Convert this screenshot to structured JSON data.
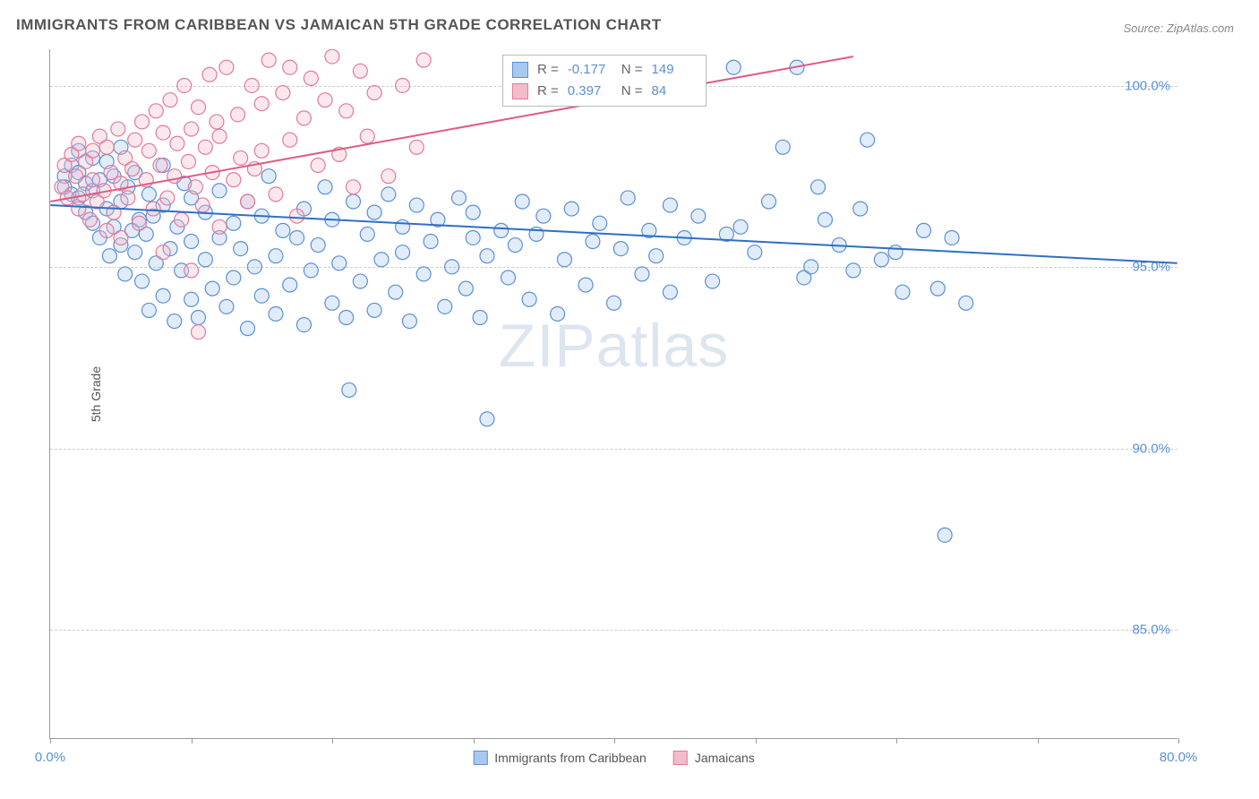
{
  "title": "IMMIGRANTS FROM CARIBBEAN VS JAMAICAN 5TH GRADE CORRELATION CHART",
  "source": "Source: ZipAtlas.com",
  "watermark": "ZIPatlas",
  "ylabel": "5th Grade",
  "chart": {
    "type": "scatter",
    "background_color": "#ffffff",
    "grid_color": "#cccccc",
    "axis_color": "#999999",
    "xlim": [
      0,
      80
    ],
    "ylim": [
      82,
      101
    ],
    "xtick_positions": [
      0,
      10,
      20,
      30,
      40,
      50,
      60,
      70,
      80
    ],
    "xtick_labels": {
      "0": "0.0%",
      "80": "80.0%"
    },
    "ytick_positions": [
      85,
      90,
      95,
      100
    ],
    "ytick_labels": [
      "85.0%",
      "90.0%",
      "95.0%",
      "100.0%"
    ],
    "marker_radius": 8,
    "marker_fill_opacity": 0.35,
    "marker_stroke_width": 1.2,
    "trend_line_width": 2,
    "series": [
      {
        "name": "Immigrants from Caribbean",
        "color_fill": "#a9c8ee",
        "color_stroke": "#5b8fd6",
        "trend_color": "#2f6fc2",
        "R": "-0.177",
        "N": "149",
        "trend": {
          "x0": 0,
          "y0": 96.7,
          "x1": 80,
          "y1": 95.1
        },
        "points": [
          [
            1,
            97.5
          ],
          [
            1,
            97.2
          ],
          [
            1.5,
            97.8
          ],
          [
            1.5,
            97.0
          ],
          [
            2,
            97.6
          ],
          [
            2,
            96.9
          ],
          [
            2,
            98.2
          ],
          [
            2.5,
            97.3
          ],
          [
            2.5,
            96.5
          ],
          [
            3,
            97.1
          ],
          [
            3,
            96.2
          ],
          [
            3,
            98.0
          ],
          [
            3.5,
            97.4
          ],
          [
            3.5,
            95.8
          ],
          [
            4,
            96.6
          ],
          [
            4,
            97.9
          ],
          [
            4.2,
            95.3
          ],
          [
            4.5,
            96.1
          ],
          [
            4.5,
            97.5
          ],
          [
            5,
            96.8
          ],
          [
            5,
            95.6
          ],
          [
            5,
            98.3
          ],
          [
            5.3,
            94.8
          ],
          [
            5.5,
            97.2
          ],
          [
            5.8,
            96.0
          ],
          [
            6,
            95.4
          ],
          [
            6,
            97.6
          ],
          [
            6.3,
            96.3
          ],
          [
            6.5,
            94.6
          ],
          [
            6.8,
            95.9
          ],
          [
            7,
            97.0
          ],
          [
            7,
            93.8
          ],
          [
            7.3,
            96.4
          ],
          [
            7.5,
            95.1
          ],
          [
            8,
            96.7
          ],
          [
            8,
            94.2
          ],
          [
            8,
            97.8
          ],
          [
            8.5,
            95.5
          ],
          [
            8.8,
            93.5
          ],
          [
            9,
            96.1
          ],
          [
            9.3,
            94.9
          ],
          [
            9.5,
            97.3
          ],
          [
            10,
            95.7
          ],
          [
            10,
            94.1
          ],
          [
            10,
            96.9
          ],
          [
            10.5,
            93.6
          ],
          [
            11,
            95.2
          ],
          [
            11,
            96.5
          ],
          [
            11.5,
            94.4
          ],
          [
            12,
            97.1
          ],
          [
            12,
            95.8
          ],
          [
            12.5,
            93.9
          ],
          [
            13,
            96.2
          ],
          [
            13,
            94.7
          ],
          [
            13.5,
            95.5
          ],
          [
            14,
            96.8
          ],
          [
            14,
            93.3
          ],
          [
            14.5,
            95.0
          ],
          [
            15,
            96.4
          ],
          [
            15,
            94.2
          ],
          [
            15.5,
            97.5
          ],
          [
            16,
            95.3
          ],
          [
            16,
            93.7
          ],
          [
            16.5,
            96.0
          ],
          [
            17,
            94.5
          ],
          [
            17.5,
            95.8
          ],
          [
            18,
            96.6
          ],
          [
            18,
            93.4
          ],
          [
            18.5,
            94.9
          ],
          [
            19,
            95.6
          ],
          [
            19.5,
            97.2
          ],
          [
            20,
            94.0
          ],
          [
            20,
            96.3
          ],
          [
            20.5,
            95.1
          ],
          [
            21,
            93.6
          ],
          [
            21.2,
            91.6
          ],
          [
            21.5,
            96.8
          ],
          [
            22,
            94.6
          ],
          [
            22.5,
            95.9
          ],
          [
            23,
            96.5
          ],
          [
            23,
            93.8
          ],
          [
            23.5,
            95.2
          ],
          [
            24,
            97.0
          ],
          [
            24.5,
            94.3
          ],
          [
            25,
            96.1
          ],
          [
            25,
            95.4
          ],
          [
            25.5,
            93.5
          ],
          [
            26,
            96.7
          ],
          [
            26.5,
            94.8
          ],
          [
            27,
            95.7
          ],
          [
            27.5,
            96.3
          ],
          [
            28,
            93.9
          ],
          [
            28.5,
            95.0
          ],
          [
            29,
            96.9
          ],
          [
            29.5,
            94.4
          ],
          [
            30,
            95.8
          ],
          [
            30,
            96.5
          ],
          [
            30.5,
            93.6
          ],
          [
            31,
            95.3
          ],
          [
            31,
            90.8
          ],
          [
            32,
            96.0
          ],
          [
            32.5,
            94.7
          ],
          [
            33,
            95.6
          ],
          [
            33.5,
            96.8
          ],
          [
            34,
            94.1
          ],
          [
            34.5,
            95.9
          ],
          [
            35,
            96.4
          ],
          [
            36,
            93.7
          ],
          [
            36.5,
            95.2
          ],
          [
            37,
            96.6
          ],
          [
            38,
            94.5
          ],
          [
            38.5,
            95.7
          ],
          [
            39,
            96.2
          ],
          [
            40,
            94.0
          ],
          [
            40.5,
            95.5
          ],
          [
            41,
            96.9
          ],
          [
            42,
            94.8
          ],
          [
            42.5,
            96.0
          ],
          [
            43,
            95.3
          ],
          [
            44,
            96.7
          ],
          [
            44,
            94.3
          ],
          [
            45,
            95.8
          ],
          [
            46,
            96.4
          ],
          [
            47,
            94.6
          ],
          [
            48,
            95.9
          ],
          [
            48.5,
            100.5
          ],
          [
            49,
            96.1
          ],
          [
            50,
            95.4
          ],
          [
            51,
            96.8
          ],
          [
            52,
            98.3
          ],
          [
            53,
            100.5
          ],
          [
            53.5,
            94.7
          ],
          [
            54,
            95.0
          ],
          [
            54.5,
            97.2
          ],
          [
            55,
            96.3
          ],
          [
            56,
            95.6
          ],
          [
            57,
            94.9
          ],
          [
            57.5,
            96.6
          ],
          [
            58,
            98.5
          ],
          [
            59,
            95.2
          ],
          [
            60,
            95.4
          ],
          [
            60.5,
            94.3
          ],
          [
            62,
            96.0
          ],
          [
            63,
            94.4
          ],
          [
            63.5,
            87.6
          ],
          [
            64,
            95.8
          ],
          [
            65,
            94.0
          ]
        ]
      },
      {
        "name": "Jamaicans",
        "color_fill": "#f3bccb",
        "color_stroke": "#e27a9a",
        "trend_color": "#df5b85",
        "R": "0.397",
        "N": "84",
        "trend": {
          "x0": 0,
          "y0": 96.8,
          "x1": 57,
          "y1": 100.8
        },
        "points": [
          [
            0.8,
            97.2
          ],
          [
            1,
            97.8
          ],
          [
            1.2,
            96.9
          ],
          [
            1.5,
            98.1
          ],
          [
            1.8,
            97.5
          ],
          [
            2,
            96.6
          ],
          [
            2,
            98.4
          ],
          [
            2.3,
            97.0
          ],
          [
            2.5,
            97.9
          ],
          [
            2.8,
            96.3
          ],
          [
            3,
            98.2
          ],
          [
            3,
            97.4
          ],
          [
            3.3,
            96.8
          ],
          [
            3.5,
            98.6
          ],
          [
            3.8,
            97.1
          ],
          [
            4,
            96.0
          ],
          [
            4,
            98.3
          ],
          [
            4.3,
            97.6
          ],
          [
            4.5,
            96.5
          ],
          [
            4.8,
            98.8
          ],
          [
            5,
            97.3
          ],
          [
            5,
            95.8
          ],
          [
            5.3,
            98.0
          ],
          [
            5.5,
            96.9
          ],
          [
            5.8,
            97.7
          ],
          [
            6,
            98.5
          ],
          [
            6.3,
            96.2
          ],
          [
            6.5,
            99.0
          ],
          [
            6.8,
            97.4
          ],
          [
            7,
            98.2
          ],
          [
            7.3,
            96.6
          ],
          [
            7.5,
            99.3
          ],
          [
            7.8,
            97.8
          ],
          [
            8,
            95.4
          ],
          [
            8,
            98.7
          ],
          [
            8.3,
            96.9
          ],
          [
            8.5,
            99.6
          ],
          [
            8.8,
            97.5
          ],
          [
            9,
            98.4
          ],
          [
            9.3,
            96.3
          ],
          [
            9.5,
            100.0
          ],
          [
            9.8,
            97.9
          ],
          [
            10,
            98.8
          ],
          [
            10,
            94.9
          ],
          [
            10.3,
            97.2
          ],
          [
            10.5,
            99.4
          ],
          [
            10.8,
            96.7
          ],
          [
            10.5,
            93.2
          ],
          [
            11,
            98.3
          ],
          [
            11.3,
            100.3
          ],
          [
            11.5,
            97.6
          ],
          [
            11.8,
            99.0
          ],
          [
            12,
            96.1
          ],
          [
            12,
            98.6
          ],
          [
            12.5,
            100.5
          ],
          [
            13,
            97.4
          ],
          [
            13.3,
            99.2
          ],
          [
            13.5,
            98.0
          ],
          [
            14,
            96.8
          ],
          [
            14.3,
            100.0
          ],
          [
            14.5,
            97.7
          ],
          [
            15,
            99.5
          ],
          [
            15,
            98.2
          ],
          [
            15.5,
            100.7
          ],
          [
            16,
            97.0
          ],
          [
            16.5,
            99.8
          ],
          [
            17,
            98.5
          ],
          [
            17,
            100.5
          ],
          [
            17.5,
            96.4
          ],
          [
            18,
            99.1
          ],
          [
            18.5,
            100.2
          ],
          [
            19,
            97.8
          ],
          [
            19.5,
            99.6
          ],
          [
            20,
            100.8
          ],
          [
            20.5,
            98.1
          ],
          [
            21,
            99.3
          ],
          [
            21.5,
            97.2
          ],
          [
            22,
            100.4
          ],
          [
            22.5,
            98.6
          ],
          [
            23,
            99.8
          ],
          [
            24,
            97.5
          ],
          [
            25,
            100.0
          ],
          [
            26,
            98.3
          ],
          [
            26.5,
            100.7
          ]
        ]
      }
    ]
  },
  "bottom_legend": [
    {
      "label": "Immigrants from Caribbean",
      "fill": "#a9c8ee",
      "stroke": "#5b8fd6"
    },
    {
      "label": "Jamaicans",
      "fill": "#f3bccb",
      "stroke": "#e27a9a"
    }
  ]
}
